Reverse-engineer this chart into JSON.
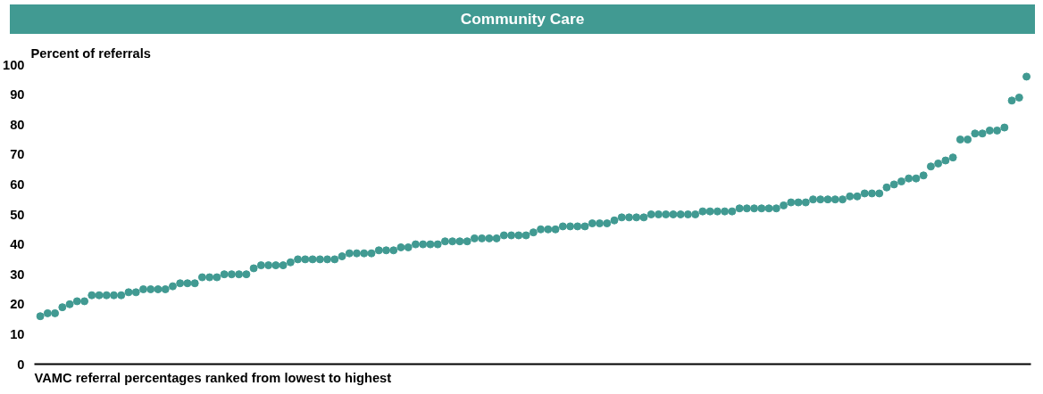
{
  "chart_data": {
    "type": "scatter",
    "title": "Community Care",
    "ylabel": "Percent of referrals",
    "xlabel": "VAMC referral percentages ranked from lowest to highest",
    "categories": [
      null,
      null,
      null,
      null,
      null,
      null,
      null,
      null,
      null,
      null,
      null,
      null,
      null,
      null,
      null,
      null,
      null,
      null,
      null,
      null,
      null,
      null,
      null,
      null,
      null,
      null,
      null,
      null,
      null,
      null,
      null,
      null,
      null,
      null,
      null,
      null,
      null,
      null,
      null,
      null,
      null,
      null,
      null,
      null,
      null,
      null,
      null,
      null,
      null,
      null,
      null,
      null,
      null,
      null,
      null,
      null,
      null,
      null,
      null,
      null,
      null,
      null,
      null,
      null,
      null,
      null,
      null,
      null,
      null,
      null,
      null,
      null,
      null,
      null,
      null,
      null,
      null,
      null,
      null,
      null,
      null,
      null,
      null,
      null,
      null,
      null,
      null,
      null,
      null,
      null,
      null,
      null,
      null,
      null,
      null,
      null,
      null,
      null,
      null,
      null,
      null,
      null,
      null,
      null,
      null,
      null,
      null,
      null,
      null,
      null,
      null,
      null,
      null,
      null,
      null,
      null,
      null,
      null,
      null,
      null,
      null,
      null,
      null,
      null,
      null,
      null,
      null,
      null,
      null,
      null,
      null,
      null,
      null,
      null,
      null
    ],
    "series": [
      {
        "color": "#419a92",
        "values": [
          16,
          17,
          17,
          19,
          20,
          21,
          21,
          23,
          23,
          23,
          23,
          23,
          24,
          24,
          25,
          25,
          25,
          25,
          26,
          27,
          27,
          27,
          29,
          29,
          29,
          30,
          30,
          30,
          30,
          32,
          33,
          33,
          33,
          33,
          34,
          35,
          35,
          35,
          35,
          35,
          35,
          36,
          37,
          37,
          37,
          37,
          38,
          38,
          38,
          39,
          39,
          40,
          40,
          40,
          40,
          41,
          41,
          41,
          41,
          42,
          42,
          42,
          42,
          43,
          43,
          43,
          43,
          44,
          45,
          45,
          45,
          46,
          46,
          46,
          46,
          47,
          47,
          47,
          48,
          49,
          49,
          49,
          49,
          50,
          50,
          50,
          50,
          50,
          50,
          50,
          51,
          51,
          51,
          51,
          51,
          52,
          52,
          52,
          52,
          52,
          52,
          53,
          54,
          54,
          54,
          55,
          55,
          55,
          55,
          55,
          56,
          56,
          57,
          57,
          57,
          59,
          60,
          61,
          62,
          62,
          63,
          66,
          67,
          68,
          69,
          75,
          75,
          77,
          77,
          78,
          78,
          79,
          88,
          89,
          96
        ]
      }
    ],
    "ylim": [
      0,
      100
    ],
    "yticks": [
      0,
      10,
      20,
      30,
      40,
      50,
      60,
      70,
      80,
      90,
      100
    ],
    "grid": false,
    "marker": "circle",
    "tick_labels": "y"
  }
}
